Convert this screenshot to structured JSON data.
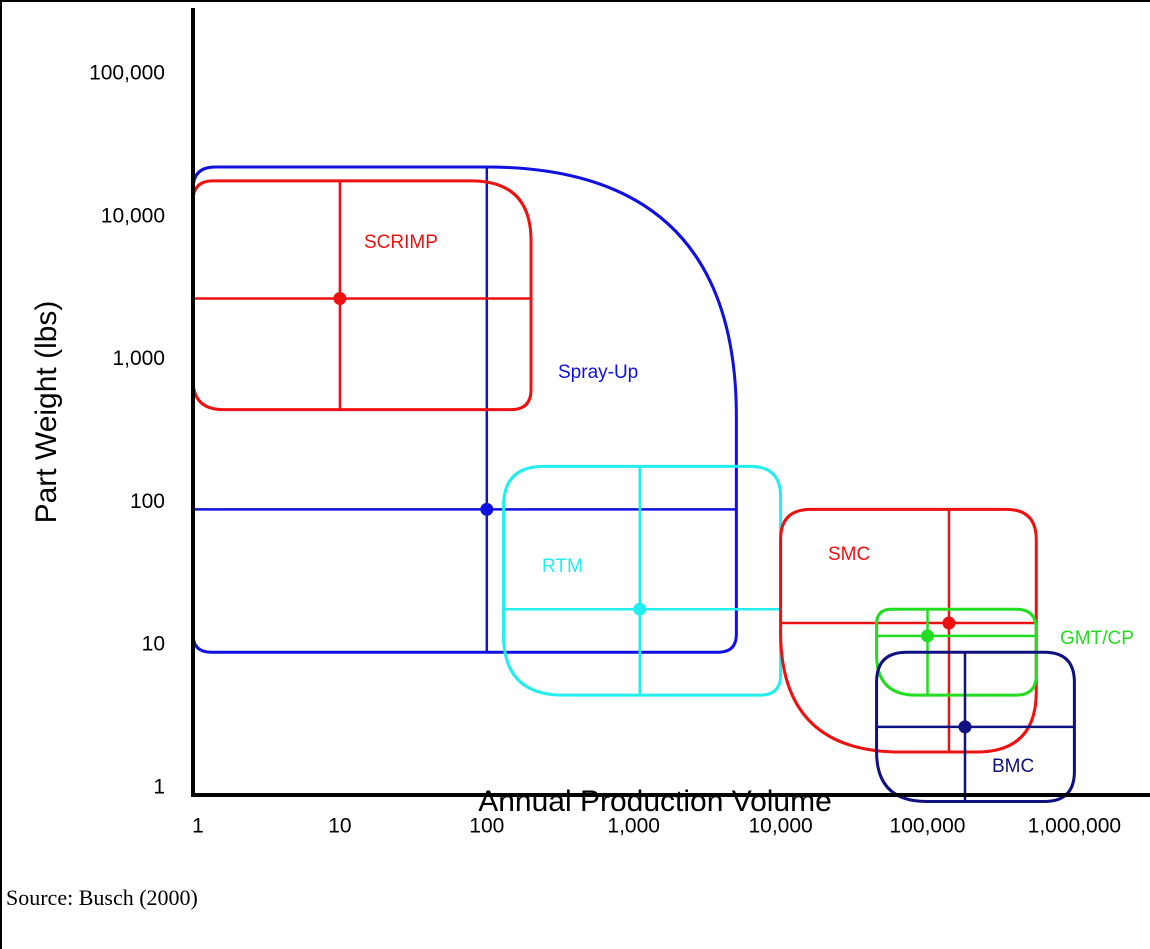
{
  "chart_data": {
    "type": "scatter",
    "xlabel": "Annual Production Volume",
    "ylabel": "Part Weight (lbs)",
    "x_scale": "log",
    "y_scale": "log",
    "xlim": [
      1,
      3000000
    ],
    "ylim": [
      0.9,
      300000
    ],
    "x_ticks": [
      {
        "value": 1,
        "label": "1"
      },
      {
        "value": 10,
        "label": "10"
      },
      {
        "value": 100,
        "label": "100"
      },
      {
        "value": 1000,
        "label": "1,000"
      },
      {
        "value": 10000,
        "label": "10,000"
      },
      {
        "value": 100000,
        "label": "100,000"
      },
      {
        "value": 1000000,
        "label": "1,000,000"
      }
    ],
    "y_ticks": [
      {
        "value": 1,
        "label": "1"
      },
      {
        "value": 10,
        "label": "10"
      },
      {
        "value": 100,
        "label": "100"
      },
      {
        "value": 1000,
        "label": "1,000"
      },
      {
        "value": 10000,
        "label": "10,000"
      },
      {
        "value": 100000,
        "label": "100,000"
      }
    ],
    "grid": false,
    "series": [
      {
        "name": "Spray-Up",
        "color": "#1010e0",
        "x_range": [
          1,
          5000
        ],
        "y_range": [
          10,
          25000
        ],
        "center": {
          "x": 100,
          "y": 100
        }
      },
      {
        "name": "SCRIMP",
        "color": "#ee1111",
        "x_range": [
          1,
          200
        ],
        "y_range": [
          500,
          20000
        ],
        "center": {
          "x": 10,
          "y": 3000
        }
      },
      {
        "name": "RTM",
        "color": "#22eeee",
        "x_range": [
          130,
          10000
        ],
        "y_range": [
          5,
          200
        ],
        "center": {
          "x": 1100,
          "y": 20
        }
      },
      {
        "name": "SMC",
        "color": "#ee1111",
        "x_range": [
          10000,
          550000
        ],
        "y_range": [
          2,
          100
        ],
        "center": {
          "x": 140000,
          "y": 16
        }
      },
      {
        "name": "GMT/CP",
        "color": "#22dd22",
        "x_range": [
          45000,
          550000
        ],
        "y_range": [
          5,
          20
        ],
        "center": {
          "x": 100000,
          "y": 13
        }
      },
      {
        "name": "BMC",
        "color": "#101080",
        "x_range": [
          45000,
          1000000
        ],
        "y_range": [
          0.9,
          10
        ],
        "center": {
          "x": 180000,
          "y": 3
        }
      }
    ]
  },
  "footer": {
    "source": "Source: Busch (2000)"
  }
}
